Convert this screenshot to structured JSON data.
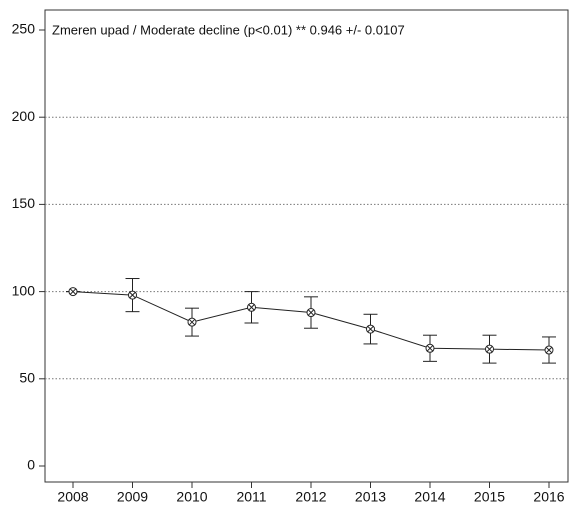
{
  "chart_data": {
    "type": "line",
    "annotation": "Zmeren upad / Moderate decline (p<0.01) **  0.946 +/- 0.0107",
    "categories": [
      "2008",
      "2009",
      "2010",
      "2011",
      "2012",
      "2013",
      "2014",
      "2015",
      "2016"
    ],
    "series": [
      {
        "color": "#222222",
        "values": [
          100,
          98,
          82.5,
          91,
          88,
          78.5,
          67.5,
          67,
          66.5
        ],
        "errors": [
          0,
          9.5,
          8,
          9,
          9,
          8.5,
          7.5,
          8,
          7.5
        ]
      }
    ],
    "ylim": [
      0,
      250
    ],
    "yticks": [
      0,
      50,
      100,
      150,
      200,
      250
    ],
    "grid": true
  }
}
